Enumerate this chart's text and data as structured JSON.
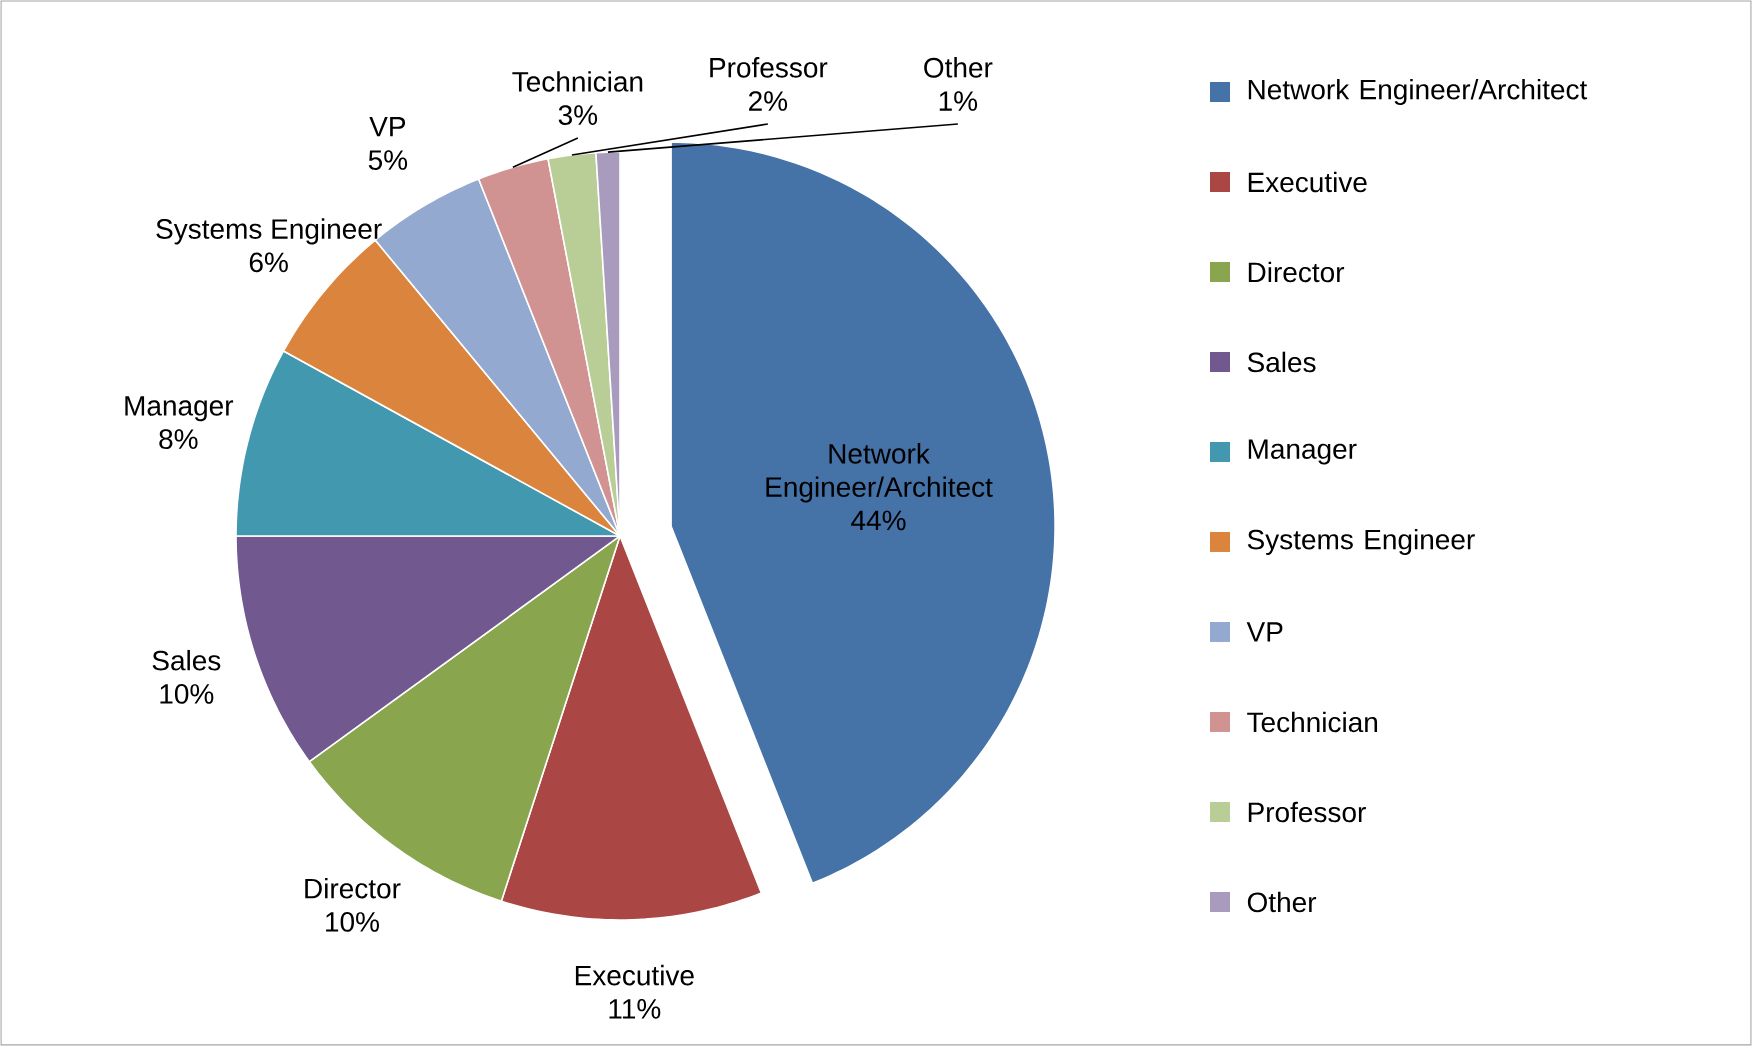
{
  "chart_data": {
    "type": "pie",
    "categories": [
      "Network Engineer/Architect",
      "Executive",
      "Director",
      "Sales",
      "Manager",
      "Systems Engineer",
      "VP",
      "Technician",
      "Professor",
      "Other"
    ],
    "values": [
      44,
      11,
      10,
      10,
      8,
      6,
      5,
      3,
      2,
      1
    ],
    "value_labels": [
      "44%",
      "11%",
      "10%",
      "10%",
      "8%",
      "6%",
      "5%",
      "3%",
      "2%",
      "1%"
    ],
    "colors": [
      "#4572a7",
      "#aa4643",
      "#89a54e",
      "#71588f",
      "#4198af",
      "#db843d",
      "#93a9cf",
      "#d19392",
      "#b9cd96",
      "#a99bbd"
    ],
    "legend": "right"
  }
}
